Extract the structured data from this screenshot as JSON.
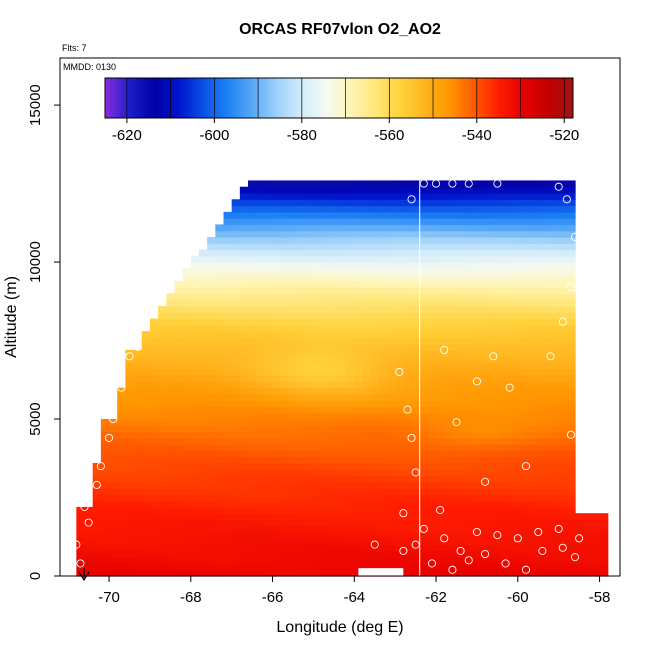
{
  "chart_data": {
    "type": "heatmap",
    "title": "ORCAS RF07vlon O2_AO2",
    "xlabel": "Longitude (deg E)",
    "ylabel": "Altitude (m)",
    "xlim": [
      -71.2,
      -57.5
    ],
    "ylim": [
      0,
      16500
    ],
    "x_ticks": [
      -70,
      -68,
      -66,
      -64,
      -62,
      -60,
      -58
    ],
    "x_tick_labels": [
      "-70",
      "-68",
      "-66",
      "-64",
      "-62",
      "-60",
      "-58"
    ],
    "y_ticks": [
      0,
      5000,
      10000,
      15000
    ],
    "y_tick_labels": [
      "0",
      "5000",
      "10000",
      "15000"
    ],
    "annotations": [
      "Flts: 7",
      "MMDD: 0130"
    ],
    "colorbar": {
      "range": [
        -625,
        -518
      ],
      "ticks": [
        -620,
        -600,
        -580,
        -560,
        -540,
        -520
      ],
      "tick_labels": [
        "-620",
        "-600",
        "-580",
        "-560",
        "-540",
        "-520"
      ],
      "colors": [
        "#8a2be2",
        "#1e1ec8",
        "#0000a5",
        "#0014cd",
        "#0a50e6",
        "#1e82f5",
        "#5aaaf5",
        "#a0d2fa",
        "#d2ecfa",
        "#f5faf0",
        "#fff5b4",
        "#ffe678",
        "#ffd23c",
        "#ffb41e",
        "#ff9600",
        "#ff5a00",
        "#ff1e00",
        "#e60000",
        "#c30000",
        "#a01414"
      ]
    },
    "vertical_line_lon": -62.4,
    "grid": false,
    "legend": "colorbar top"
  }
}
